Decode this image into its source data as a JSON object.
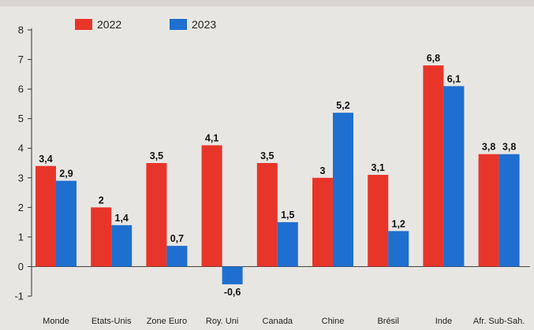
{
  "chart_data": {
    "type": "bar",
    "categories": [
      "Monde",
      "Etats-Unis",
      "Zone Euro",
      "Roy. Uni",
      "Canada",
      "Chine",
      "Brésil",
      "Inde",
      "Afr. Sub-Sah."
    ],
    "series": [
      {
        "name": "2022",
        "values": [
          3.4,
          2,
          3.5,
          4.1,
          3.5,
          3,
          3.1,
          6.8,
          3.8
        ],
        "labels": [
          "3,4",
          "2",
          "3,5",
          "4,1",
          "3,5",
          "3",
          "3,1",
          "6,8",
          "3,8"
        ],
        "color": "#e8352a"
      },
      {
        "name": "2023",
        "values": [
          2.9,
          1.4,
          0.7,
          -0.6,
          1.5,
          5.2,
          1.2,
          6.1,
          3.8
        ],
        "labels": [
          "2,9",
          "1,4",
          "0,7",
          "-0,6",
          "1,5",
          "5,2",
          "1,2",
          "6,1",
          "3,8"
        ],
        "color": "#1f6fd0"
      }
    ],
    "yticks": [
      "8",
      "7",
      "6",
      "5",
      "4",
      "3",
      "2",
      "1",
      "0",
      "-1"
    ],
    "ylim": [
      -1,
      8
    ],
    "grid": false,
    "legend_position": "top-left"
  }
}
